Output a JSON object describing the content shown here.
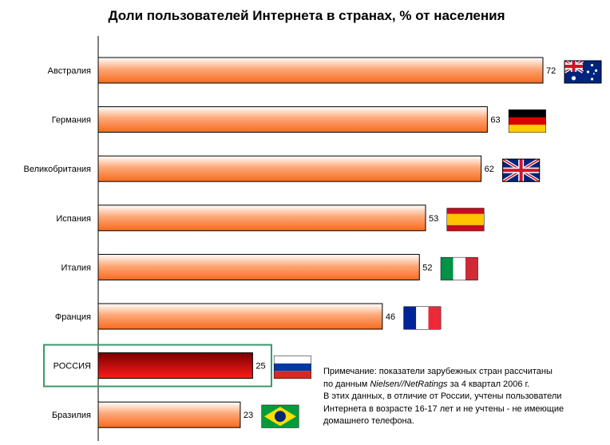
{
  "chart_data": {
    "type": "bar",
    "orientation": "horizontal",
    "title": "Доли пользователей Интернета в странах, % от населения",
    "categories": [
      "Австралия",
      "Германия",
      "Великобритания",
      "Испания",
      "Италия",
      "Франция",
      "РОССИЯ",
      "Бразилия"
    ],
    "values": [
      72,
      63,
      62,
      53,
      52,
      46,
      25,
      23
    ],
    "highlight_category": "РОССИЯ",
    "flags": [
      "australia-flag-icon",
      "germany-flag-icon",
      "uk-flag-icon",
      "spain-flag-icon",
      "italy-flag-icon",
      "france-flag-icon",
      "russia-flag-icon",
      "brazil-flag-icon"
    ],
    "xlim": [
      0,
      72
    ],
    "grid": false,
    "colors": {
      "bar_top": "#ffffff",
      "bar_mid": "#fca878",
      "bar_bottom": "#f96a1c",
      "highlight_top": "#7a0000",
      "highlight_bottom": "#ff1a1a",
      "highlight_box": "#3a9a6a"
    }
  },
  "note": {
    "line1": "Примечание: показатели зарубежных стран рассчитаны",
    "line2_prefix": "по данным ",
    "line2_source": "Nielsen//NetRatings",
    "line2_suffix": " за 4 квартал 2006 г.",
    "line3": "В этих данных, в отличие от России, учтены пользователи",
    "line4": "Интернета в возрасте 16-17 лет и не учтены - не имеющие",
    "line5": "домашнего телефона."
  }
}
